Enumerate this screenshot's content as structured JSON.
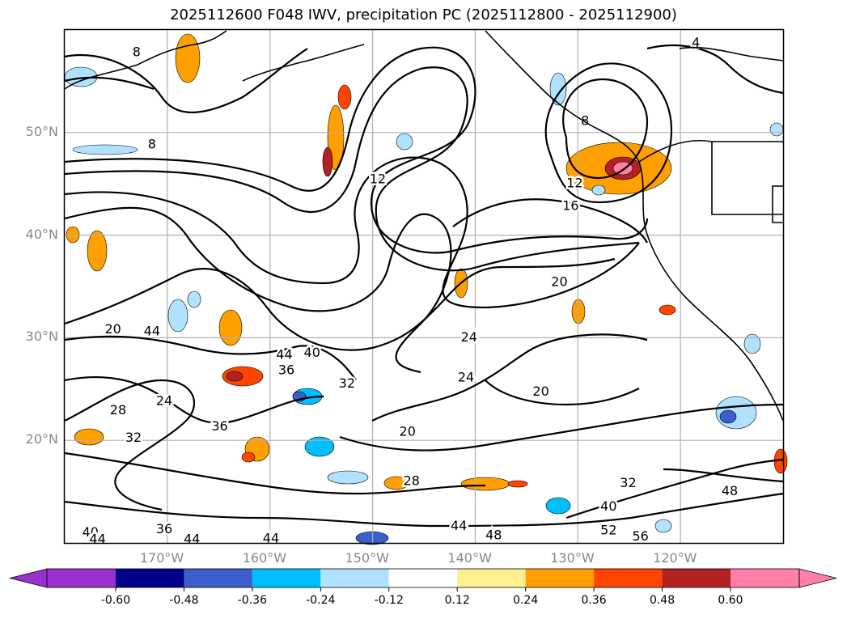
{
  "title": "2025112600 F048 IWV, precipitation PC (2025112800 - 2025112900)",
  "lat_labels": [
    {
      "text": "50°N",
      "lat": 50
    },
    {
      "text": "40°N",
      "lat": 40
    },
    {
      "text": "30°N",
      "lat": 30
    },
    {
      "text": "20°N",
      "lat": 20
    }
  ],
  "lon_labels": [
    {
      "text": "170°W",
      "lon": -170
    },
    {
      "text": "160°W",
      "lon": -160
    },
    {
      "text": "150°W",
      "lon": -150
    },
    {
      "text": "140°W",
      "lon": -140
    },
    {
      "text": "130°W",
      "lon": -130
    },
    {
      "text": "120°W",
      "lon": -120
    }
  ],
  "contour_labels": [
    {
      "text": "8",
      "lon": -173,
      "lat": 57.8
    },
    {
      "text": "8",
      "lon": -171.5,
      "lat": 48.8
    },
    {
      "text": "4",
      "lon": -118.5,
      "lat": 58.7
    },
    {
      "text": "8",
      "lon": -129.3,
      "lat": 51.1
    },
    {
      "text": "12",
      "lon": -149.5,
      "lat": 45.4
    },
    {
      "text": "12",
      "lon": -130.3,
      "lat": 45.0
    },
    {
      "text": "16",
      "lon": -130.7,
      "lat": 42.8
    },
    {
      "text": "20",
      "lon": -131.8,
      "lat": 35.4
    },
    {
      "text": "20",
      "lon": -175.3,
      "lat": 30.8
    },
    {
      "text": "44",
      "lon": -171.5,
      "lat": 30.6
    },
    {
      "text": "44",
      "lon": -158.6,
      "lat": 28.3
    },
    {
      "text": "40",
      "lon": -155.9,
      "lat": 28.5
    },
    {
      "text": "36",
      "lon": -158.4,
      "lat": 26.8
    },
    {
      "text": "32",
      "lon": -152.5,
      "lat": 25.5
    },
    {
      "text": "24",
      "lon": -140.6,
      "lat": 30.0
    },
    {
      "text": "24",
      "lon": -140.9,
      "lat": 26.1
    },
    {
      "text": "20",
      "lon": -133.6,
      "lat": 24.7
    },
    {
      "text": "28",
      "lon": -174.8,
      "lat": 22.9
    },
    {
      "text": "24",
      "lon": -170.3,
      "lat": 23.8
    },
    {
      "text": "32",
      "lon": -173.3,
      "lat": 20.2
    },
    {
      "text": "36",
      "lon": -164.9,
      "lat": 21.3
    },
    {
      "text": "20",
      "lon": -146.6,
      "lat": 20.8
    },
    {
      "text": "28",
      "lon": -146.2,
      "lat": 16.0
    },
    {
      "text": "32",
      "lon": -125.1,
      "lat": 15.8
    },
    {
      "text": "40",
      "lon": -127.0,
      "lat": 13.5
    },
    {
      "text": "48",
      "lon": -115.2,
      "lat": 15.0
    },
    {
      "text": "44",
      "lon": -141.6,
      "lat": 11.6
    },
    {
      "text": "48",
      "lon": -138.2,
      "lat": 10.7
    },
    {
      "text": "52",
      "lon": -127.0,
      "lat": 11.2
    },
    {
      "text": "56",
      "lon": -123.9,
      "lat": 10.6
    },
    {
      "text": "44",
      "lon": -167.6,
      "lat": 10.3
    },
    {
      "text": "44",
      "lon": -159.9,
      "lat": 10.4
    },
    {
      "text": "36",
      "lon": -170.3,
      "lat": 11.3
    },
    {
      "text": "40",
      "lon": -177.5,
      "lat": 11.0
    },
    {
      "text": "44",
      "lon": -176.8,
      "lat": 10.3
    }
  ],
  "colorbar": {
    "ticks": [
      "-0.60",
      "-0.48",
      "-0.36",
      "-0.24",
      "-0.12",
      "0.12",
      "0.24",
      "0.36",
      "0.48",
      "0.60"
    ],
    "colors": [
      "#9932cc",
      "#00008b",
      "#3a5fcd",
      "#00bfff",
      "#b0e2ff",
      "#ffffff",
      "#fff08f",
      "#ff9f00",
      "#ff4500",
      "#b22222",
      "#ff7fa6"
    ]
  },
  "colors": {
    "contour": "#000000",
    "grid": "#b0b0b0",
    "axis_text": "#888888"
  }
}
